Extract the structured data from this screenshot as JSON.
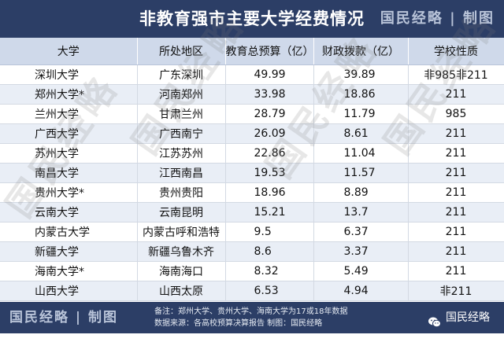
{
  "header": {
    "title": "非教育强市主要大学经费情况",
    "brand": "国民经略 | 制图"
  },
  "table": {
    "columns": [
      "大学",
      "所处地区",
      "教育总预算（亿）",
      "财政拨款（亿）",
      "学校性质"
    ],
    "rows": [
      [
        "深圳大学",
        "广东深圳",
        "49.99",
        "39.89",
        "非985非211"
      ],
      [
        "郑州大学*",
        "河南郑州",
        "33.98",
        "18.86",
        "211"
      ],
      [
        "兰州大学",
        "甘肃兰州",
        "28.79",
        "11.79",
        "985"
      ],
      [
        "广西大学",
        "广西南宁",
        "26.09",
        "8.61",
        "211"
      ],
      [
        "苏州大学",
        "江苏苏州",
        "22.86",
        "11.04",
        "211"
      ],
      [
        "南昌大学",
        "江西南昌",
        "19.53",
        "11.57",
        "211"
      ],
      [
        "贵州大学*",
        "贵州贵阳",
        "18.96",
        "8.89",
        "211"
      ],
      [
        "云南大学",
        "云南昆明",
        "15.21",
        "13.7",
        "211"
      ],
      [
        "内蒙古大学",
        "内蒙古呼和浩特",
        "9.5",
        "6.37",
        "211"
      ],
      [
        "新疆大学",
        "新疆乌鲁木齐",
        "8.6",
        "3.37",
        "211"
      ],
      [
        "海南大学*",
        "海南海口",
        "8.32",
        "5.49",
        "211"
      ],
      [
        "山西大学",
        "山西太原",
        "6.53",
        "4.94",
        "非211"
      ]
    ]
  },
  "watermark": "国民经略",
  "footer": {
    "brand": "国民经略 | 制图",
    "note_line1": "备注：郑州大学、贵州大学、海南大学为17或18年数据",
    "note_line2": "数据来源：各高校预算决算报告   制图：国民经略",
    "wechat_label": "国民经略",
    "wechat_icon": "wechat-icon"
  }
}
